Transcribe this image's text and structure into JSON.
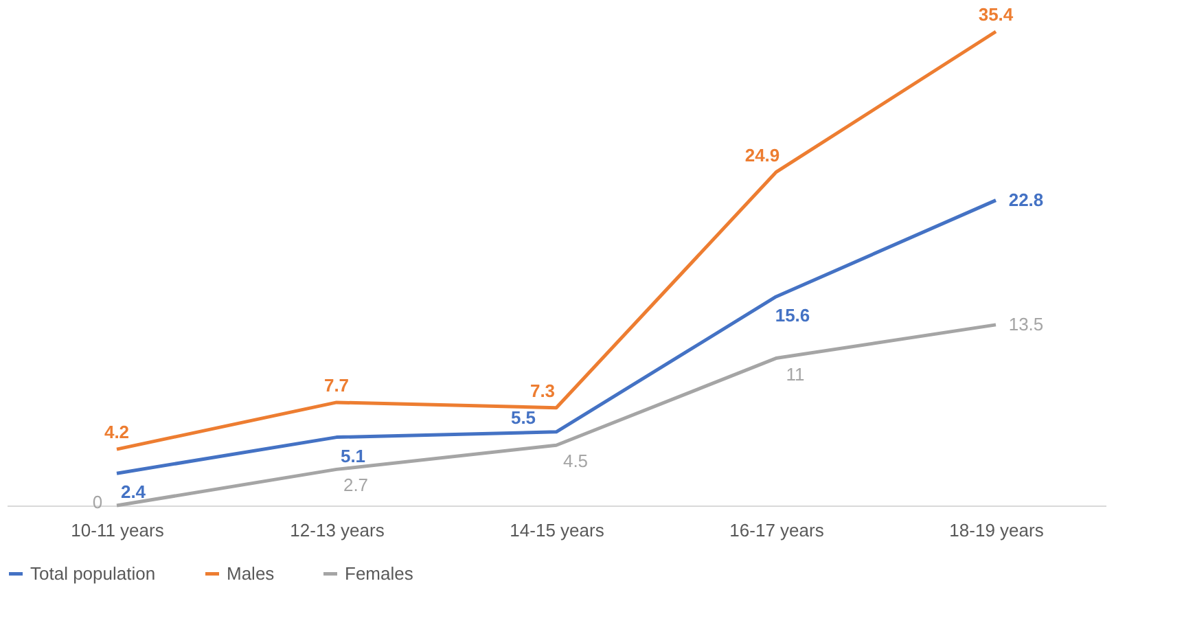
{
  "chart_data": {
    "type": "line",
    "categories": [
      "10-11 years",
      "12-13 years",
      "14-15 years",
      "16-17  years",
      "18-19 years"
    ],
    "series": [
      {
        "name": "Total population",
        "color": "#4472c4",
        "values": [
          2.4,
          5.1,
          5.5,
          15.6,
          22.8
        ]
      },
      {
        "name": "Males",
        "color": "#ed7d31",
        "values": [
          4.2,
          7.7,
          7.3,
          24.9,
          35.4
        ]
      },
      {
        "name": "Females",
        "color": "#a5a5a5",
        "values": [
          0,
          2.7,
          4.5,
          11,
          13.5
        ]
      }
    ],
    "data_labels": true,
    "legend": "bottom",
    "grid": false,
    "marker": "none",
    "line_style": "solid"
  }
}
